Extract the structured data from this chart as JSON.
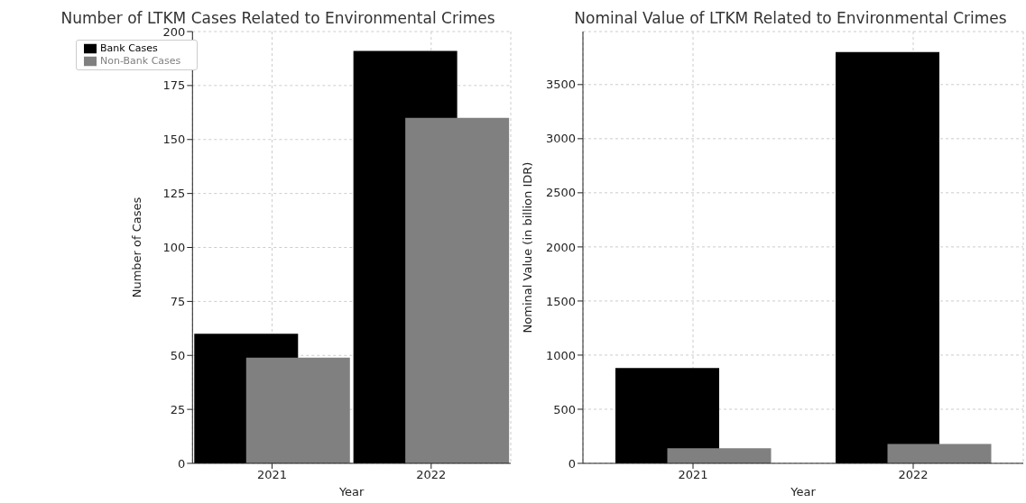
{
  "chart_data": [
    {
      "type": "bar",
      "title": "Number of LTKM Cases Related to Environmental Crimes",
      "xlabel": "Year",
      "ylabel": "Number of Cases",
      "categories": [
        "2021",
        "2022"
      ],
      "series": [
        {
          "name": "Bank Cases",
          "color": "#000000",
          "values": [
            60,
            191
          ]
        },
        {
          "name": "Non-Bank Cases",
          "color": "#808080",
          "values": [
            49,
            160
          ]
        }
      ],
      "ylim": [
        0,
        200
      ],
      "yticks": [
        0,
        25,
        50,
        75,
        100,
        125,
        150,
        175,
        200
      ],
      "grid": true,
      "legend": "top left"
    },
    {
      "type": "bar",
      "title": "Nominal Value of LTKM Related to Environmental Crimes",
      "xlabel": "Year",
      "ylabel": "Nominal Value (in billion IDR)",
      "categories": [
        "2021",
        "2022"
      ],
      "series": [
        {
          "color": "#000000",
          "values": [
            880,
            3800
          ]
        },
        {
          "color": "#808080",
          "values": [
            140,
            180
          ]
        }
      ],
      "ylim": [
        0,
        3990
      ],
      "yticks": [
        0,
        500,
        1000,
        1500,
        2000,
        2500,
        3000,
        3500
      ],
      "grid": true
    }
  ]
}
